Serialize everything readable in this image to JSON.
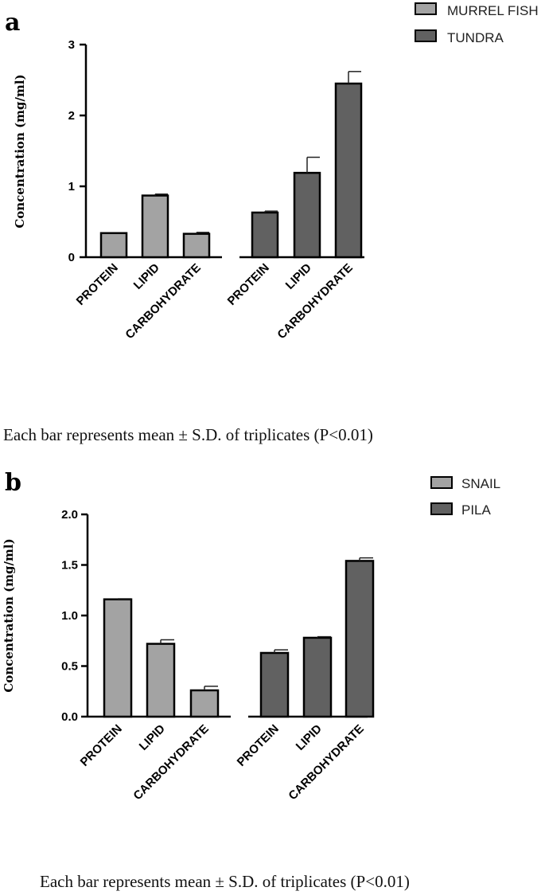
{
  "colors": {
    "light": "#a3a3a3",
    "dark": "#616161",
    "stroke": "#000000"
  },
  "chart_data": [
    {
      "type": "bar",
      "panel": "a",
      "ylabel": "Concentration (mg/ml)",
      "ylim": [
        0,
        3
      ],
      "yticks": [
        "0",
        "1",
        "2",
        "3"
      ],
      "ytick_values": [
        0,
        1,
        2,
        3
      ],
      "legend": [
        "MURREL FISH",
        "TUNDRA"
      ],
      "legend_position": "top-right",
      "series": [
        {
          "name": "MURREL FISH",
          "categories": [
            "PROTEIN",
            "LIPID",
            "CARBOHYDRATE"
          ],
          "values": [
            0.34,
            0.87,
            0.33
          ],
          "errors": [
            0.0,
            0.02,
            0.02
          ]
        },
        {
          "name": "TUNDRA",
          "categories": [
            "PROTEIN",
            "LIPID",
            "CARBOHYDRATE"
          ],
          "values": [
            0.63,
            1.19,
            2.45
          ],
          "errors": [
            0.02,
            0.22,
            0.17
          ]
        }
      ],
      "caption": "Each bar represents mean ± S.D. of triplicates (P<0.01)"
    },
    {
      "type": "bar",
      "panel": "b",
      "ylabel": "Concentration (mg/ml)",
      "ylim": [
        0,
        2.0
      ],
      "yticks": [
        "0.0",
        "0.5",
        "1.0",
        "1.5",
        "2.0"
      ],
      "ytick_values": [
        0,
        0.5,
        1.0,
        1.5,
        2.0
      ],
      "legend": [
        "SNAIL",
        "PILA"
      ],
      "legend_position": "top-right",
      "series": [
        {
          "name": "SNAIL",
          "categories": [
            "PROTEIN",
            "LIPID",
            "CARBOHYDRATE"
          ],
          "values": [
            1.16,
            0.72,
            0.26
          ],
          "errors": [
            0.005,
            0.04,
            0.04
          ]
        },
        {
          "name": "PILA",
          "categories": [
            "PROTEIN",
            "LIPID",
            "CARBOHYDRATE"
          ],
          "values": [
            0.63,
            0.78,
            1.54
          ],
          "errors": [
            0.03,
            0.01,
            0.03
          ]
        }
      ],
      "caption": "Each bar represents mean ± S.D. of triplicates (P<0.01)"
    }
  ]
}
